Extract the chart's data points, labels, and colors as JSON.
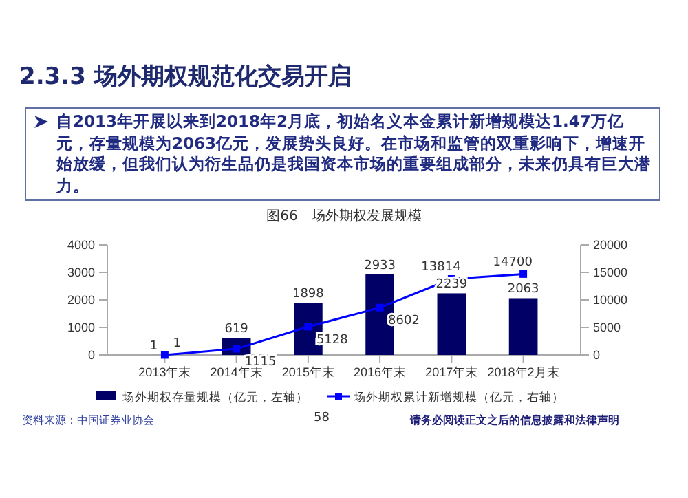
{
  "chart_data": {
    "type": "bar",
    "title": "图66　场外期权发展规模",
    "categories": [
      "2013年末",
      "2014年末",
      "2015年末",
      "2016年末",
      "2017年末",
      "2018年2月末"
    ],
    "series": [
      {
        "name": "场外期权存量规模（亿元，左轴）",
        "color": "#000066",
        "values": [
          1,
          619,
          1898,
          2933,
          2239,
          2063
        ],
        "value_labels": [
          "1",
          "619",
          "1898",
          "2933",
          "2239",
          "2063"
        ]
      },
      {
        "name": "场外期权累计新增规模（亿元，右轴）",
        "type": "line",
        "axis": "y2",
        "color": "#0000ff",
        "values": [
          1,
          1115,
          5128,
          8602,
          13814,
          14700
        ],
        "value_labels": [
          "1",
          "1115",
          "5128",
          "8602",
          "13814",
          "14700"
        ]
      }
    ],
    "ylim": [
      0,
      4000
    ],
    "yticks": [
      0,
      1000,
      2000,
      3000,
      4000
    ],
    "y2lim": [
      0,
      20000
    ],
    "y2ticks": [
      0,
      5000,
      10000,
      15000,
      20000
    ],
    "marker": "square",
    "line_style": "solid",
    "legend": "bottom",
    "grid": false,
    "annotations": [
      "2.3.3 场外期权规范化交易开启",
      "自2013年开展以来到2018年2月底，初始名义本金累计新增规模达1.47万亿元，存量规模为2063亿元，发展势头良好。在市场和监管的双重影响下，增速开始放缓，但我们认为衍生品仍是我国资本市场的重要组成部分，未来仍具有巨大潜力。",
      "资料来源：中国证券业协会",
      "58",
      "请务必阅读正文之后的信息披露和法律声明"
    ]
  }
}
